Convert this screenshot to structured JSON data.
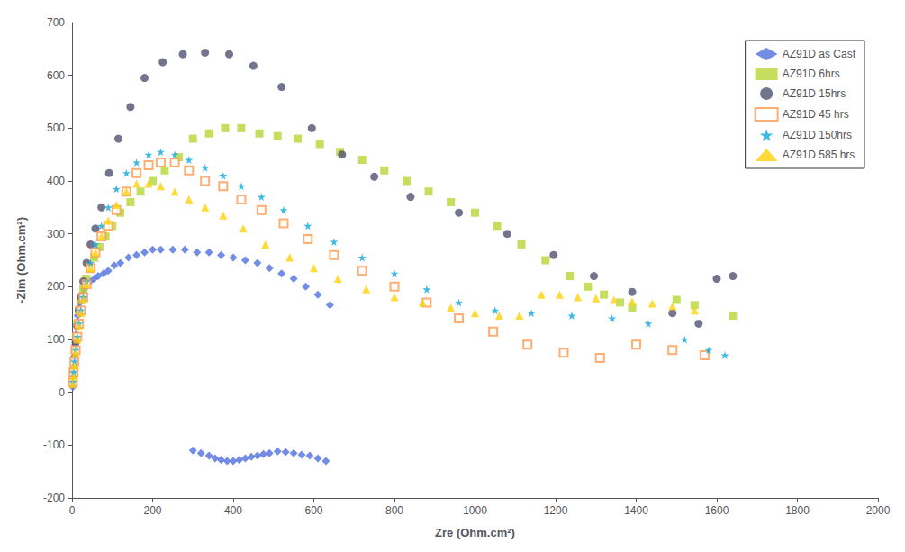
{
  "chart_data": {
    "type": "scatter",
    "xlabel": "Zre (Ohm.cm²)",
    "ylabel": "-Zim (Ohm.cm²)",
    "xlim": [
      0,
      2000
    ],
    "ylim": [
      -200,
      700
    ],
    "xticks": [
      0,
      200,
      400,
      600,
      800,
      1000,
      1200,
      1400,
      1600,
      1800,
      2000
    ],
    "yticks": [
      -200,
      -100,
      0,
      100,
      200,
      300,
      400,
      500,
      600,
      700
    ],
    "grid": false,
    "legend": "upper right",
    "series": [
      {
        "name": "AZ91D as Cast",
        "marker": "diamond",
        "x": [
          2,
          3,
          4,
          5,
          6,
          7,
          8,
          10,
          12,
          14,
          17,
          20,
          25,
          30,
          37,
          45,
          55,
          65,
          78,
          90,
          105,
          120,
          140,
          160,
          180,
          200,
          220,
          250,
          280,
          310,
          340,
          370,
          400,
          430,
          460,
          490,
          520,
          550,
          580,
          610,
          640,
          300,
          320,
          340,
          355,
          370,
          385,
          400,
          415,
          430,
          445,
          460,
          475,
          490,
          510,
          530,
          550,
          570,
          590,
          610,
          630
        ],
        "values": [
          10,
          20,
          30,
          45,
          60,
          75,
          90,
          110,
          130,
          145,
          160,
          170,
          185,
          195,
          205,
          210,
          215,
          220,
          225,
          230,
          240,
          245,
          255,
          260,
          265,
          270,
          270,
          270,
          270,
          265,
          265,
          260,
          255,
          250,
          245,
          235,
          225,
          215,
          200,
          185,
          165,
          -110,
          -115,
          -120,
          -125,
          -128,
          -130,
          -130,
          -128,
          -125,
          -122,
          -120,
          -117,
          -115,
          -112,
          -113,
          -115,
          -118,
          -120,
          -125,
          -130
        ]
      },
      {
        "name": "AZ91D 6hrs",
        "marker": "square",
        "x": [
          2,
          3,
          5,
          7,
          10,
          13,
          17,
          22,
          28,
          35,
          44,
          55,
          68,
          83,
          100,
          120,
          145,
          170,
          200,
          230,
          265,
          300,
          340,
          380,
          420,
          465,
          510,
          560,
          615,
          665,
          720,
          775,
          830,
          885,
          940,
          1000,
          1055,
          1115,
          1175,
          1235,
          1280,
          1320,
          1360,
          1390,
          1500,
          1545,
          1640
        ],
        "values": [
          20,
          35,
          55,
          80,
          105,
          130,
          155,
          175,
          195,
          215,
          235,
          255,
          275,
          295,
          315,
          340,
          360,
          380,
          400,
          420,
          445,
          480,
          490,
          500,
          500,
          490,
          485,
          480,
          470,
          455,
          440,
          420,
          400,
          380,
          360,
          340,
          315,
          280,
          250,
          220,
          200,
          185,
          170,
          160,
          175,
          165,
          145
        ]
      },
      {
        "name": "AZ91D 15hrs",
        "marker": "circle",
        "x": [
          2,
          4,
          6,
          9,
          13,
          17,
          22,
          28,
          36,
          46,
          58,
          73,
          92,
          115,
          145,
          180,
          225,
          275,
          330,
          390,
          450,
          520,
          595,
          670,
          750,
          840,
          960,
          1080,
          1195,
          1295,
          1390,
          1490,
          1555,
          1600,
          1640
        ],
        "values": [
          20,
          40,
          65,
          95,
          125,
          155,
          180,
          210,
          245,
          280,
          310,
          350,
          415,
          480,
          540,
          595,
          625,
          640,
          643,
          640,
          618,
          578,
          500,
          450,
          408,
          370,
          340,
          300,
          260,
          220,
          190,
          150,
          130,
          215,
          220
        ]
      },
      {
        "name": "AZ91D 45 hrs",
        "marker": "open_square",
        "x": [
          2,
          4,
          6,
          9,
          13,
          17,
          22,
          28,
          36,
          46,
          58,
          73,
          90,
          110,
          135,
          160,
          190,
          220,
          255,
          290,
          330,
          375,
          420,
          470,
          525,
          585,
          650,
          720,
          800,
          880,
          960,
          1045,
          1130,
          1220,
          1310,
          1400,
          1490,
          1570
        ],
        "values": [
          20,
          38,
          58,
          80,
          105,
          130,
          155,
          180,
          205,
          235,
          265,
          295,
          315,
          345,
          380,
          415,
          430,
          435,
          435,
          420,
          400,
          390,
          365,
          345,
          320,
          290,
          260,
          230,
          200,
          170,
          140,
          115,
          90,
          75,
          65,
          90,
          80,
          70
        ]
      },
      {
        "name": "AZ91D 150hrs",
        "marker": "star",
        "x": [
          2,
          4,
          6,
          9,
          13,
          17,
          22,
          28,
          36,
          46,
          58,
          73,
          90,
          110,
          135,
          160,
          190,
          220,
          255,
          290,
          330,
          375,
          420,
          470,
          525,
          585,
          650,
          720,
          800,
          880,
          960,
          1050,
          1140,
          1240,
          1340,
          1430,
          1520,
          1580,
          1620
        ],
        "values": [
          20,
          38,
          58,
          80,
          105,
          130,
          155,
          180,
          210,
          245,
          280,
          315,
          350,
          385,
          415,
          435,
          450,
          455,
          450,
          440,
          425,
          410,
          390,
          370,
          345,
          315,
          285,
          255,
          225,
          195,
          170,
          155,
          150,
          145,
          140,
          130,
          100,
          80,
          70
        ]
      },
      {
        "name": "AZ91D 585 hrs",
        "marker": "triangle",
        "x": [
          2,
          4,
          6,
          9,
          13,
          17,
          22,
          28,
          36,
          46,
          58,
          73,
          90,
          110,
          135,
          160,
          190,
          220,
          255,
          290,
          330,
          375,
          425,
          480,
          540,
          600,
          660,
          730,
          800,
          870,
          940,
          1000,
          1060,
          1110,
          1165,
          1210,
          1255,
          1300,
          1345,
          1390,
          1440,
          1490,
          1545
        ],
        "values": [
          15,
          30,
          50,
          75,
          100,
          125,
          150,
          175,
          205,
          235,
          265,
          295,
          325,
          355,
          380,
          395,
          395,
          390,
          380,
          365,
          350,
          335,
          310,
          280,
          255,
          235,
          215,
          195,
          180,
          170,
          160,
          150,
          145,
          145,
          185,
          185,
          180,
          178,
          175,
          172,
          168,
          163,
          155
        ]
      }
    ]
  }
}
